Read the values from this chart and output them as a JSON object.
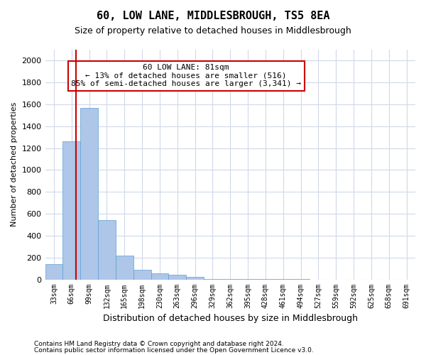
{
  "title": "60, LOW LANE, MIDDLESBROUGH, TS5 8EA",
  "subtitle": "Size of property relative to detached houses in Middlesbrough",
  "xlabel": "Distribution of detached houses by size in Middlesbrough",
  "ylabel": "Number of detached properties",
  "bar_values": [
    140,
    1265,
    1565,
    540,
    215,
    90,
    55,
    40,
    20,
    5,
    5,
    3,
    2,
    1,
    1,
    0,
    0,
    0,
    0,
    0,
    0
  ],
  "bar_labels": [
    "33sqm",
    "66sqm",
    "99sqm",
    "132sqm",
    "165sqm",
    "198sqm",
    "230sqm",
    "263sqm",
    "296sqm",
    "329sqm",
    "362sqm",
    "395sqm",
    "428sqm",
    "461sqm",
    "494sqm",
    "527sqm",
    "559sqm",
    "592sqm",
    "625sqm",
    "658sqm",
    "691sqm"
  ],
  "bar_color": "#aec6e8",
  "bar_edge_color": "#5a9fd4",
  "vline_x": 1.25,
  "vline_color": "#cc0000",
  "annotation_text": "60 LOW LANE: 81sqm\n← 13% of detached houses are smaller (516)\n85% of semi-detached houses are larger (3,341) →",
  "annotation_box_color": "#cc0000",
  "ylim": [
    0,
    2100
  ],
  "yticks": [
    0,
    200,
    400,
    600,
    800,
    1000,
    1200,
    1400,
    1600,
    1800,
    2000
  ],
  "footer_line1": "Contains HM Land Registry data © Crown copyright and database right 2024.",
  "footer_line2": "Contains public sector information licensed under the Open Government Licence v3.0.",
  "background_color": "#ffffff",
  "grid_color": "#d0d8e8"
}
